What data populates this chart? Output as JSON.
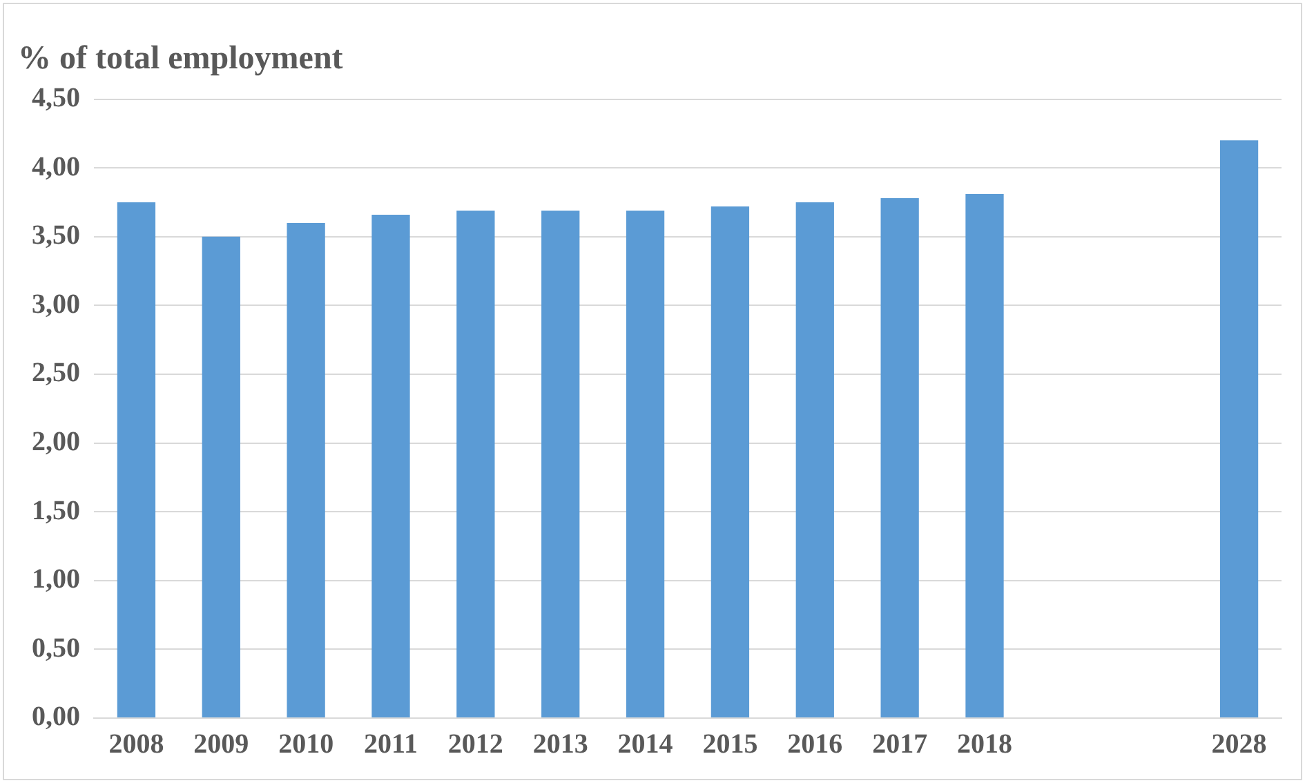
{
  "chart_data": {
    "type": "bar",
    "title": "% of total employment",
    "categories": [
      "2008",
      "2009",
      "2010",
      "2011",
      "2012",
      "2013",
      "2014",
      "2015",
      "2016",
      "2017",
      "2018",
      null,
      null,
      "2028"
    ],
    "values": [
      3.75,
      3.5,
      3.6,
      3.66,
      3.69,
      3.69,
      3.69,
      3.72,
      3.75,
      3.78,
      3.81,
      null,
      null,
      4.2
    ],
    "color": "#5b9bd5",
    "ylim": [
      0,
      4.5
    ],
    "yticks": [
      {
        "value": 0,
        "label": "0,00"
      },
      {
        "value": 0.5,
        "label": "0,50"
      },
      {
        "value": 1,
        "label": "1,00"
      },
      {
        "value": 1.5,
        "label": "1,50"
      },
      {
        "value": 2,
        "label": "2,00"
      },
      {
        "value": 2.5,
        "label": "2,50"
      },
      {
        "value": 3,
        "label": "3,00"
      },
      {
        "value": 3.5,
        "label": "3,50"
      },
      {
        "value": 4,
        "label": "4,00"
      },
      {
        "value": 4.5,
        "label": "4,50"
      }
    ],
    "grid": "y"
  }
}
